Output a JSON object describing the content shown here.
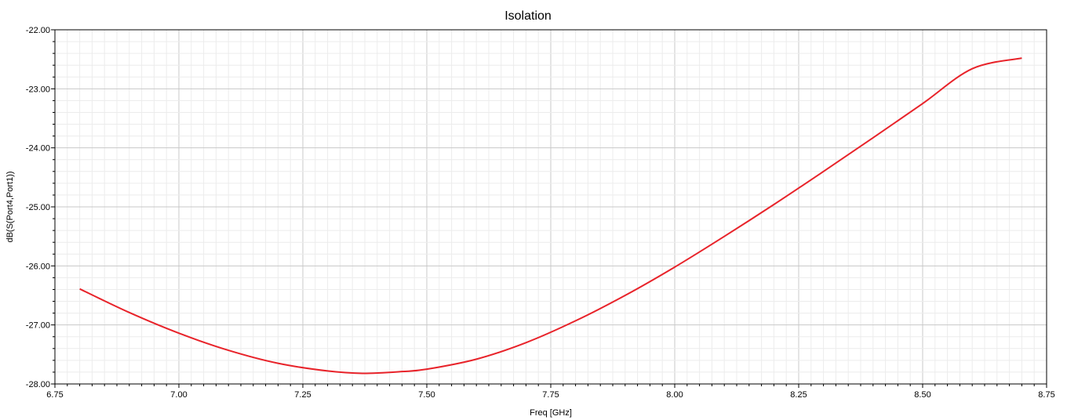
{
  "chart_data": {
    "type": "line",
    "title": "Isolation",
    "xlabel": "Freq [GHz]",
    "ylabel": "dB(S(Port4,Port1))",
    "xlim": [
      6.75,
      8.75
    ],
    "ylim": [
      -28.0,
      -22.0
    ],
    "x_ticks": [
      "6.75",
      "7.00",
      "7.25",
      "7.50",
      "7.75",
      "8.00",
      "8.25",
      "8.50",
      "8.75"
    ],
    "y_ticks": [
      "-22.00",
      "-23.00",
      "-24.00",
      "-25.00",
      "-26.00",
      "-27.00",
      "-28.00"
    ],
    "grid": true,
    "series": [
      {
        "color": "#e8232a",
        "x": [
          6.8,
          6.9,
          7.0,
          7.1,
          7.2,
          7.3,
          7.37,
          7.45,
          7.5,
          7.6,
          7.7,
          7.8,
          7.9,
          8.0,
          8.1,
          8.2,
          8.3,
          8.4,
          8.5,
          8.6,
          8.7
        ],
        "y": [
          -26.39,
          -26.79,
          -27.14,
          -27.43,
          -27.65,
          -27.78,
          -27.82,
          -27.79,
          -27.75,
          -27.58,
          -27.3,
          -26.93,
          -26.5,
          -26.02,
          -25.5,
          -24.96,
          -24.4,
          -23.83,
          -23.25,
          -22.66,
          -22.48
        ]
      }
    ]
  }
}
